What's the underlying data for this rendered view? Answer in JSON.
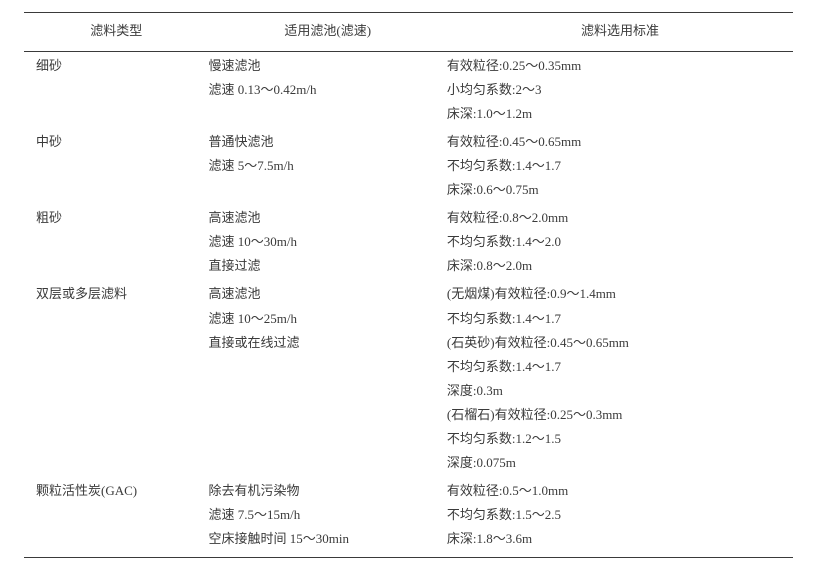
{
  "colors": {
    "text": "#3a3a3a",
    "rule": "#3a3a3a",
    "background": "#ffffff"
  },
  "typography": {
    "family": "SimSun/Songti serif",
    "fontsize_pt": 10,
    "line_height": 1.85
  },
  "table": {
    "type": "table",
    "col_widths_pct": [
      24,
      31,
      45
    ],
    "header_align": "center",
    "body_align": "left",
    "headers": {
      "type": "滤料类型",
      "pool": "适用滤池(滤速)",
      "spec": "滤料选用标准"
    },
    "rows": [
      {
        "type": "细砂",
        "pool": [
          "慢速滤池",
          "滤速 0.13～0.42m/h"
        ],
        "spec": [
          "有效粒径:0.25～0.35mm",
          "小均匀系数:2～3",
          "床深:1.0～1.2m"
        ]
      },
      {
        "type": "中砂",
        "pool": [
          "普通快滤池",
          "滤速 5～7.5m/h"
        ],
        "spec": [
          "有效粒径:0.45～0.65mm",
          "不均匀系数:1.4～1.7",
          "床深:0.6～0.75m"
        ]
      },
      {
        "type": "粗砂",
        "pool": [
          "高速滤池",
          "滤速 10～30m/h",
          "直接过滤"
        ],
        "spec": [
          "有效粒径:0.8～2.0mm",
          "不均匀系数:1.4～2.0",
          "床深:0.8～2.0m"
        ]
      },
      {
        "type": "双层或多层滤料",
        "pool": [
          "高速滤池",
          "滤速 10～25m/h",
          "直接或在线过滤"
        ],
        "spec": [
          "(无烟煤)有效粒径:0.9～1.4mm",
          "不均匀系数:1.4～1.7",
          "(石英砂)有效粒径:0.45～0.65mm",
          "不均匀系数:1.4～1.7",
          "深度:0.3m",
          "(石榴石)有效粒径:0.25～0.3mm",
          "不均匀系数:1.2～1.5",
          "深度:0.075m"
        ]
      },
      {
        "type": "颗粒活性炭(GAC)",
        "pool": [
          "除去有机污染物",
          "滤速 7.5～15m/h",
          "空床接触时间 15～30min"
        ],
        "spec": [
          "有效粒径:0.5～1.0mm",
          "不均匀系数:1.5～2.5",
          "床深:1.8～3.6m"
        ]
      }
    ]
  }
}
